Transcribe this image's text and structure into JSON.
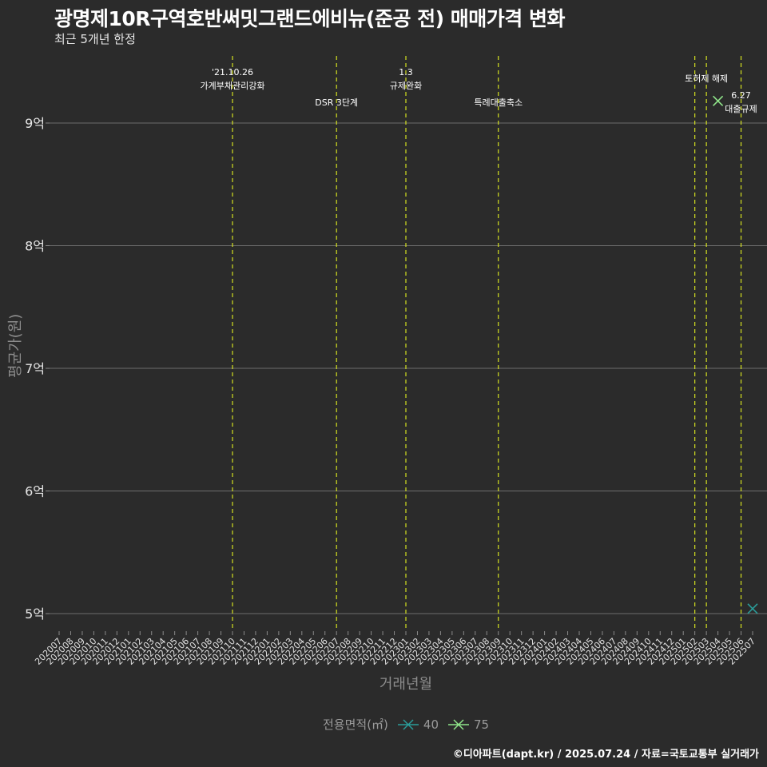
{
  "header": {
    "title": "광명제10R구역호반써밋그랜드에비뉴(준공 전) 매매가격 변화",
    "subtitle": "최근 5개년 한정"
  },
  "axes": {
    "ylabel": "평균가(원)",
    "xlabel": "거래년월"
  },
  "legend": {
    "title": "전용면적(㎡)",
    "items": [
      {
        "label": "40",
        "color": "#2a9d9a"
      },
      {
        "label": "75",
        "color": "#90e68a"
      }
    ]
  },
  "footer": {
    "credit": "©디아파트(dapt.kr) / 2025.07.24 / 자료=국토교통부 실거래가"
  },
  "chart_data": {
    "type": "scatter",
    "title": "광명제10R구역호반써밋그랜드에비뉴(준공 전) 매매가격 변화",
    "subtitle": "최근 5개년 한정",
    "xlabel": "거래년월",
    "ylabel": "평균가(원)",
    "x_ticks": [
      "202007",
      "202008",
      "202009",
      "202010",
      "202011",
      "202012",
      "202101",
      "202102",
      "202103",
      "202104",
      "202105",
      "202106",
      "202107",
      "202108",
      "202109",
      "202110",
      "202111",
      "202112",
      "202201",
      "202202",
      "202203",
      "202204",
      "202205",
      "202206",
      "202207",
      "202208",
      "202209",
      "202210",
      "202211",
      "202212",
      "202301",
      "202302",
      "202303",
      "202304",
      "202305",
      "202306",
      "202307",
      "202308",
      "202309",
      "202310",
      "202311",
      "202312",
      "202401",
      "202402",
      "202403",
      "202404",
      "202405",
      "202406",
      "202407",
      "202408",
      "202409",
      "202410",
      "202411",
      "202412",
      "202501",
      "202502",
      "202503",
      "202504",
      "202505",
      "202506",
      "202507"
    ],
    "y_ticks": [
      {
        "value": 500000000,
        "label": "5억"
      },
      {
        "value": 600000000,
        "label": "6억"
      },
      {
        "value": 700000000,
        "label": "7억"
      },
      {
        "value": 800000000,
        "label": "8억"
      },
      {
        "value": 900000000,
        "label": "9억"
      }
    ],
    "ylim": [
      490000000,
      950000000
    ],
    "grid": {
      "horizontal": true,
      "vertical": false
    },
    "legend_position": "bottom",
    "legend_title": "전용면적(㎡)",
    "series": [
      {
        "name": "40",
        "color": "#2a9d9a",
        "marker": "x",
        "points": [
          {
            "x": "202507",
            "y": 504000000
          }
        ]
      },
      {
        "name": "75",
        "color": "#90e68a",
        "marker": "x",
        "points": [
          {
            "x": "202504",
            "y": 918000000
          }
        ]
      }
    ],
    "annotations": [
      {
        "x": "202110",
        "lines": [
          "'21.10.26",
          "가계부채관리강화"
        ],
        "row": "top"
      },
      {
        "x": "202207",
        "lines": [
          "DSR 3단계"
        ],
        "row": "low"
      },
      {
        "x": "202301",
        "lines": [
          "1.3",
          "규제완화"
        ],
        "row": "top"
      },
      {
        "x": "202309",
        "lines": [
          "특례대출축소"
        ],
        "row": "low"
      },
      {
        "x": "202502",
        "lines": [],
        "row": "none"
      },
      {
        "x": "202503",
        "lines": [
          "토허제 해제"
        ],
        "row": "mid"
      },
      {
        "x": "202506",
        "lines": [
          "6.27",
          "대출규제"
        ],
        "row": "mid2"
      }
    ],
    "vline_color": "#d4e020"
  }
}
